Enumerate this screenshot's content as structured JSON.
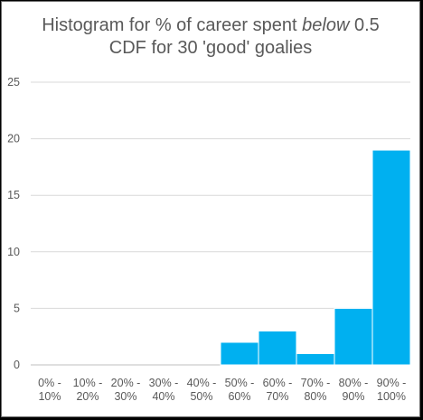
{
  "chart_data": {
    "type": "bar",
    "title_parts": [
      {
        "text": "Histogram for % of career spent ",
        "style": "normal"
      },
      {
        "text": "below",
        "style": "italic"
      },
      {
        "text": " 0.5",
        "style": "normal"
      }
    ],
    "title_line2": "CDF for 30 'good' goalies",
    "categories": [
      [
        "0% -",
        "10%"
      ],
      [
        "10% -",
        "20%"
      ],
      [
        "20% -",
        "30%"
      ],
      [
        "30% -",
        "40%"
      ],
      [
        "40% -",
        "50%"
      ],
      [
        "50% -",
        "60%"
      ],
      [
        "60% -",
        "70%"
      ],
      [
        "70% -",
        "80%"
      ],
      [
        "80% -",
        "90%"
      ],
      [
        "90% -",
        "100%"
      ]
    ],
    "values": [
      0,
      0,
      0,
      0,
      0,
      2,
      3,
      1,
      5,
      19
    ],
    "ylim": [
      0,
      25
    ],
    "yticks": [
      0,
      5,
      10,
      15,
      20,
      25
    ],
    "xlabel": "",
    "ylabel": "",
    "grid": true,
    "bar_color": "#00B0F0",
    "grid_color": "#D9D9D9",
    "text_color": "#595959"
  }
}
